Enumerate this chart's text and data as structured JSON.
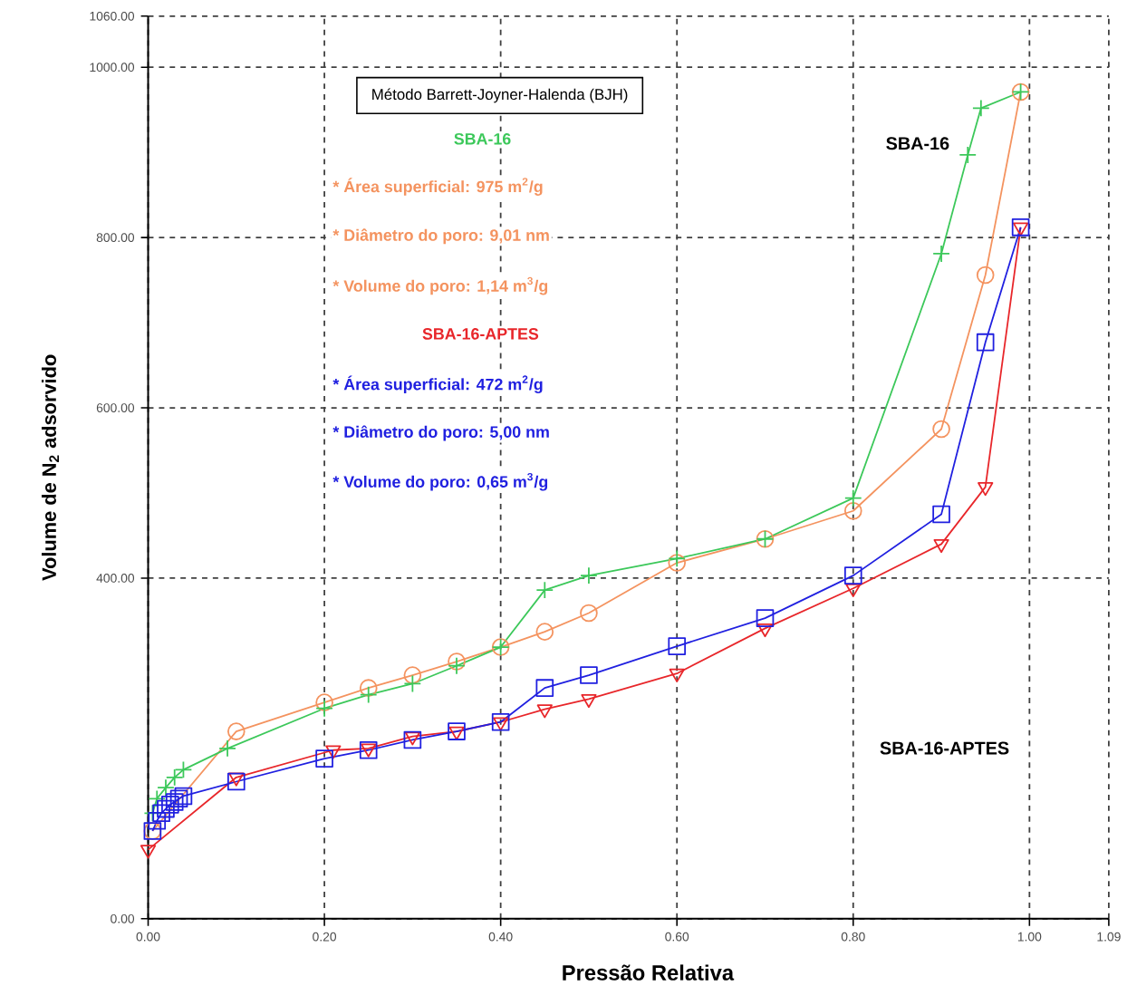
{
  "chart_data": {
    "type": "line",
    "xlabel": "Pressão Relativa",
    "ylabel": "Volume de N$_{2}$ adsorvido",
    "xlim": [
      0,
      1.09
    ],
    "ylim": [
      0,
      1060
    ],
    "xticks": [
      {
        "value": 0,
        "label": "0.00"
      },
      {
        "value": 0.2,
        "label": "0.20"
      },
      {
        "value": 0.4,
        "label": "0.40"
      },
      {
        "value": 0.6,
        "label": "0.60"
      },
      {
        "value": 0.8,
        "label": "0.80"
      },
      {
        "value": 1.0,
        "label": "1.00"
      },
      1.09
    ],
    "yticks": [
      {
        "value": 0,
        "label": "0.00"
      },
      {
        "value": 400,
        "label": "400.00"
      },
      {
        "value": 600,
        "label": "600.00"
      },
      {
        "value": 800,
        "label": "800.00"
      },
      {
        "value": 1000,
        "label": "1000.00"
      },
      {
        "value": 1060,
        "label": "1060.00"
      }
    ],
    "grid": true,
    "line_style": "solid",
    "series": [
      {
        "color": "#f4935f",
        "marker": "circle",
        "x": [
          0.005,
          0.1,
          0.2,
          0.25,
          0.3,
          0.35,
          0.4,
          0.45,
          0.5,
          0.6,
          0.7,
          0.8,
          0.9,
          0.95,
          0.99
        ],
        "values": [
          103,
          220,
          254,
          271,
          286,
          302,
          319,
          337,
          359,
          418,
          446,
          479,
          575,
          756,
          971
        ]
      },
      {
        "color": "#3cc85a",
        "marker": "cross",
        "x": [
          0.005,
          0.01,
          0.02,
          0.03,
          0.04,
          0.09,
          0.2,
          0.25,
          0.3,
          0.35,
          0.4,
          0.45,
          0.5,
          0.6,
          0.7,
          0.8,
          0.9,
          0.93,
          0.945,
          0.99
        ],
        "values": [
          124,
          141,
          154,
          166,
          175,
          200,
          247,
          263,
          276,
          297,
          319,
          386,
          403,
          423,
          446,
          494,
          781,
          897,
          952,
          971
        ]
      },
      {
        "color": "#e8262a",
        "marker": "triangle",
        "x": [
          0.0,
          0.1,
          0.21,
          0.25,
          0.3,
          0.35,
          0.4,
          0.45,
          0.5,
          0.6,
          0.7,
          0.8,
          0.9,
          0.95,
          0.99
        ],
        "values": [
          81,
          166,
          198,
          200,
          214,
          220,
          231,
          246,
          258,
          288,
          341,
          388,
          440,
          507,
          812
        ]
      },
      {
        "color": "#2020e0",
        "marker": "square",
        "x": [
          0.005,
          0.01,
          0.015,
          0.02,
          0.025,
          0.03,
          0.035,
          0.04,
          0.1,
          0.2,
          0.25,
          0.3,
          0.35,
          0.4,
          0.45,
          0.5,
          0.6,
          0.7,
          0.8,
          0.9,
          0.95,
          0.99
        ],
        "values": [
          103,
          115,
          124,
          129,
          134,
          137,
          141,
          144,
          161,
          188,
          198,
          210,
          220,
          231,
          271,
          286,
          320,
          353,
          403,
          475,
          677,
          812
        ]
      }
    ],
    "annotations": [
      "Método Barrett-Joyner-Halenda (BJH)",
      "SBA-16",
      "* Área superficial: 975 m$^{2}$/g",
      "* Diâmetro do poro: 9,01 nm",
      "* Volume do poro: 1,14 m$^{3}$/g",
      "SBA-16-APTES",
      "* Área superficial: 472 m$^{2}$/g",
      "* Diâmetro do poro: 5,00 nm",
      "* Volume do poro: 0,65 m$^{3}$/g",
      "SBA-16",
      "SBA-16-APTES"
    ]
  }
}
